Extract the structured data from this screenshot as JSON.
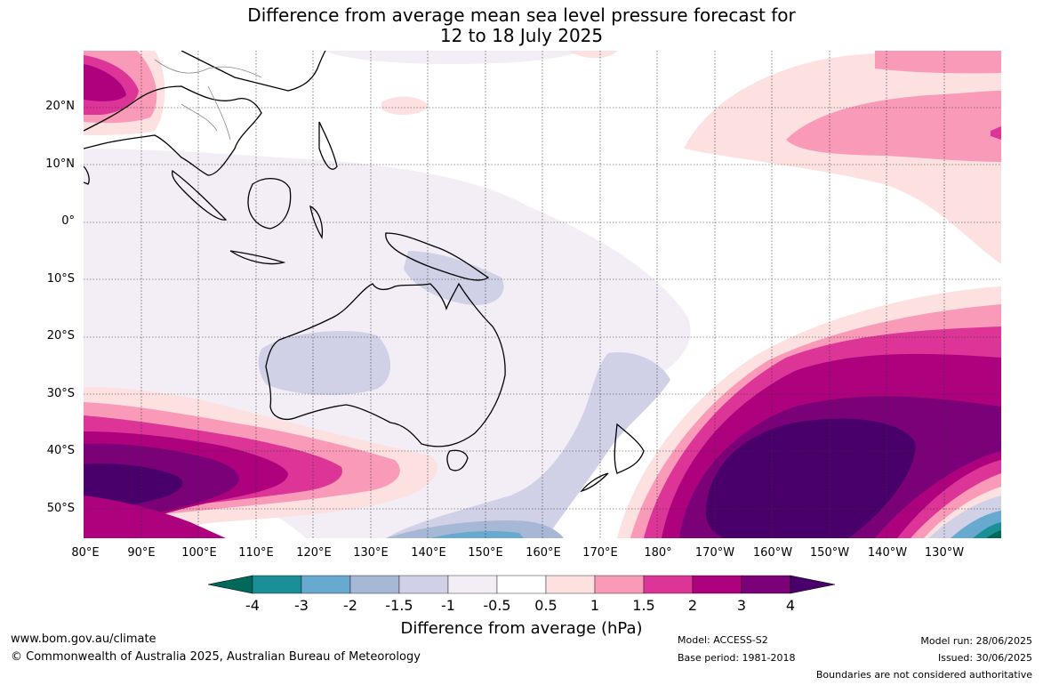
{
  "title_line1": "Difference from average mean sea level pressure forecast for",
  "title_line2": "12 to 18 July 2025",
  "lat_labels": [
    "20°N",
    "10°N",
    "0°",
    "10°S",
    "20°S",
    "30°S",
    "40°S",
    "50°S"
  ],
  "lon_labels": [
    "80°E",
    "90°E",
    "100°E",
    "110°E",
    "120°E",
    "130°E",
    "140°E",
    "150°E",
    "160°E",
    "170°E",
    "180°",
    "170°W",
    "160°W",
    "150°W",
    "140°W",
    "130°W"
  ],
  "colorbar": {
    "labels": [
      "-4",
      "-3",
      "-2",
      "-1.5",
      "-1",
      "-0.5",
      "0.5",
      "1",
      "1.5",
      "2",
      "3",
      "4"
    ],
    "colors": [
      "#00695c",
      "#1a9096",
      "#67a9cf",
      "#a6b8d6",
      "#d0d1e6",
      "#f3eef6",
      "#ffffff",
      "#fde0e0",
      "#f99ab8",
      "#dd3497",
      "#ae017e",
      "#7a0177",
      "#49006a"
    ],
    "title": "Difference from average (hPa)"
  },
  "footer": {
    "url": "www.bom.gov.au/climate",
    "copyright": "© Commonwealth of Australia 2025, Australian Bureau of Meteorology",
    "model": "Model: ACCESS-S2",
    "base_period": "Base period: 1981-2018",
    "model_run": "Model run: 28/06/2025",
    "issued": "Issued: 30/06/2025",
    "disclaimer": "Boundaries are not considered authoritative"
  }
}
